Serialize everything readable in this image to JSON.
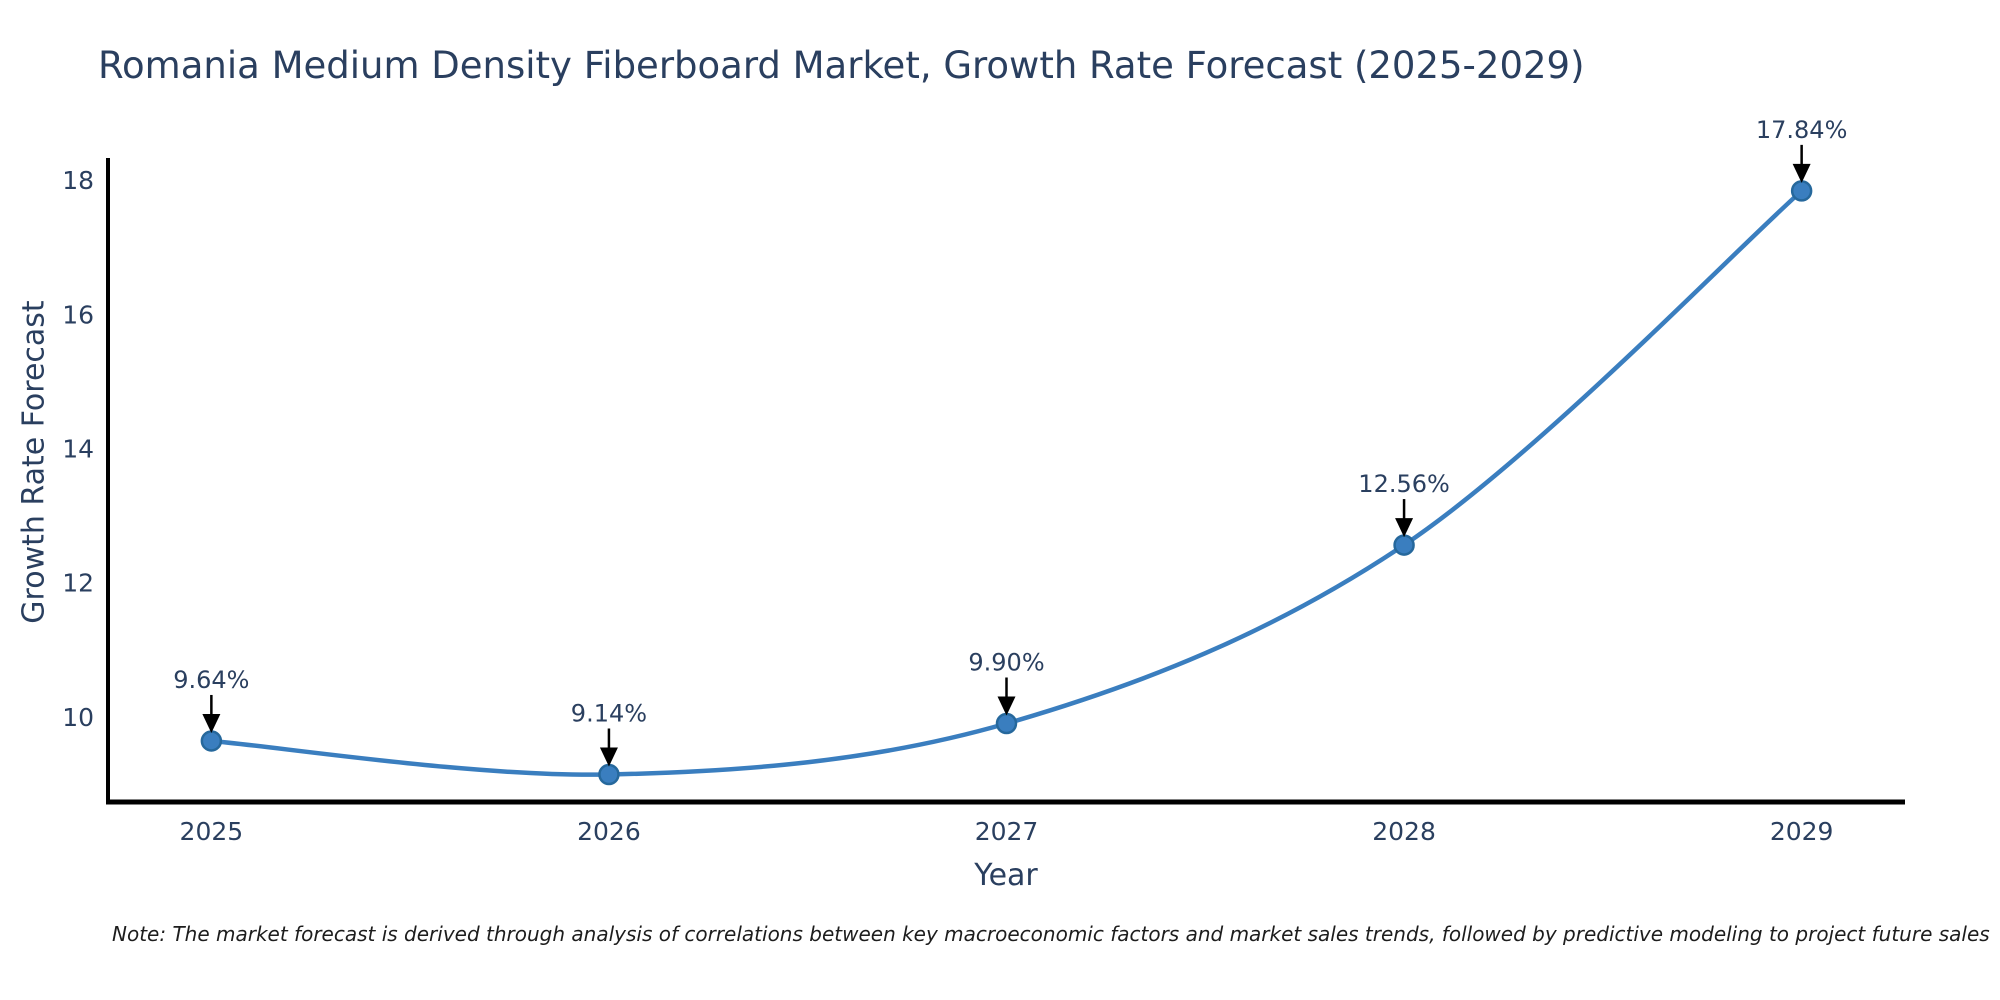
{
  "page": {
    "background_color": "#ffffff"
  },
  "chart": {
    "note": "Note: The market forecast is derived through analysis of correlations between key macroeconomic factors and market sales trends, followed by predictive modeling to project future sales"
  },
  "chart_data": {
    "type": "line",
    "title": "Romania Medium Density Fiberboard Market, Growth Rate Forecast (2025-2029)",
    "xlabel": "Year",
    "ylabel": "Growth Rate Forecast",
    "x": [
      2025,
      2026,
      2027,
      2028,
      2029
    ],
    "series": [
      {
        "name": "Growth Rate Forecast",
        "values": [
          9.64,
          9.14,
          9.9,
          12.56,
          17.84
        ]
      }
    ],
    "annotations": [
      "9.64%",
      "9.14%",
      "9.90%",
      "12.56%",
      "17.84%"
    ],
    "xticks": [
      2025,
      2026,
      2027,
      2028,
      2029
    ],
    "yticks": [
      10,
      12,
      14,
      16,
      18
    ],
    "xlim": [
      2024.74,
      2029.26
    ],
    "ylim": [
      8.73,
      18.33
    ],
    "grid": false,
    "legend": "none",
    "line_shape": "spline",
    "colors": {
      "line": "#3a7ebf",
      "marker_fill": "#3a7ebf",
      "marker_edge": "#26689c",
      "axis_line": "#000000",
      "tick_text": "#2a3f5f",
      "title_text": "#2a3f5f",
      "annotation_text": "#2a3f5f",
      "arrow": "#000000"
    }
  }
}
